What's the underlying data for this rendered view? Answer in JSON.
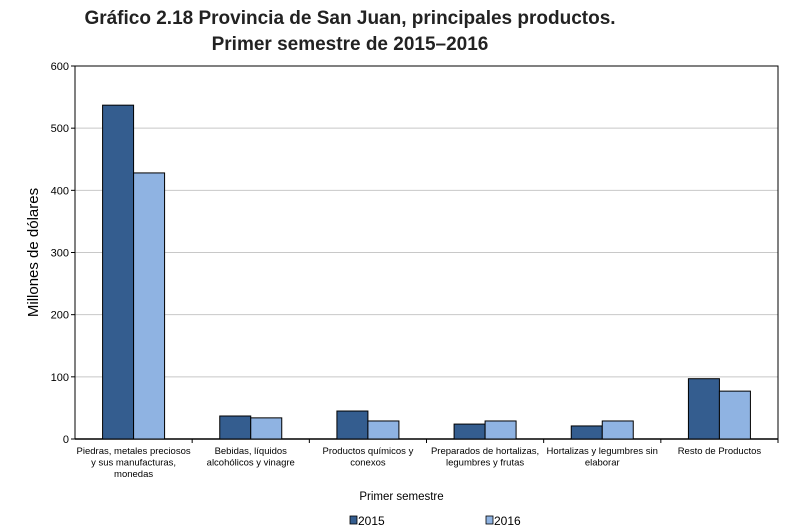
{
  "chart_data": {
    "type": "bar",
    "title": "Gráfico 2.18 Provincia de San Juan, principales productos.",
    "subtitle": "Primer semestre de 2015–2016",
    "xlabel": "Primer semestre",
    "ylabel": "Millones de dólares",
    "ylim": [
      0,
      600
    ],
    "yticks": [
      0,
      100,
      200,
      300,
      400,
      500,
      600
    ],
    "grid": true,
    "legend_position": "bottom",
    "categories": [
      [
        "Piedras, metales preciosos",
        "y sus manufacturas,",
        "monedas"
      ],
      [
        "Bebidas, líquidos",
        "alcohólicos y vinagre"
      ],
      [
        "Productos químicos y",
        "conexos"
      ],
      [
        "Preparados de hortalizas,",
        "legumbres y frutas"
      ],
      [
        "Hortalizas y legumbres sin",
        "elaborar"
      ],
      [
        "Resto de Productos"
      ]
    ],
    "series": [
      {
        "name": "2015",
        "color": "#345d8f",
        "values": [
          537,
          37,
          45,
          24,
          21,
          97
        ]
      },
      {
        "name": "2016",
        "color": "#8fb3e2",
        "values": [
          428,
          34,
          29,
          29,
          29,
          77
        ]
      }
    ]
  }
}
